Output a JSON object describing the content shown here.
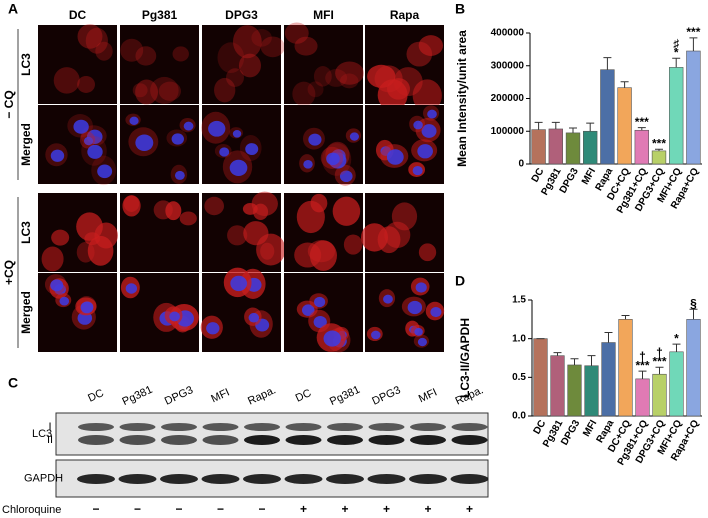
{
  "figure": {
    "panel_a": {
      "letter": "A",
      "columns": [
        "DC",
        "Pg381",
        "DPG3",
        "MFI",
        "Rapa"
      ],
      "groups": [
        {
          "label": "− CQ",
          "rows": [
            "LC3",
            "Merged"
          ]
        },
        {
          "label": "+CQ",
          "rows": [
            "LC3",
            "Merged"
          ]
        }
      ]
    },
    "panel_c": {
      "letter": "C",
      "lanes": [
        "DC",
        "Pg381",
        "DPG3",
        "MFI",
        "Rapa.",
        "DC",
        "Pg381",
        "DPG3",
        "MFI",
        "Rapa."
      ],
      "blots": [
        "LC3",
        "GAPDH"
      ],
      "bands": [
        "I",
        "II"
      ],
      "treatment": "Chloroquine",
      "treatment_signs": [
        "−",
        "−",
        "−",
        "−",
        "−",
        "+",
        "+",
        "+",
        "+",
        "+"
      ]
    }
  },
  "chart_data": [
    {
      "panel": "B",
      "type": "bar",
      "ylabel": "Mean Intensity/unit area",
      "categories": [
        "DC",
        "Pg381",
        "DPG3",
        "MFI",
        "Rapa",
        "DC+CQ",
        "Pg381+CQ",
        "DPG3+CQ",
        "MFI+CQ",
        "Rapa+CQ"
      ],
      "values": [
        105000,
        107000,
        95000,
        100000,
        288000,
        233000,
        103000,
        40000,
        295000,
        345000
      ],
      "errors": [
        22000,
        20000,
        15000,
        25000,
        37000,
        18000,
        8000,
        5000,
        28000,
        40000
      ],
      "significance": [
        null,
        null,
        null,
        null,
        null,
        null,
        [
          "***"
        ],
        [
          "***"
        ],
        [
          "♯",
          "*"
        ],
        [
          "***"
        ]
      ],
      "colors": [
        "#b5725c",
        "#b0607a",
        "#6e8a3c",
        "#2f8a78",
        "#4c6fa6",
        "#f2a65a",
        "#e07ab4",
        "#b8d068",
        "#70d8b8",
        "#8aa6e0"
      ],
      "ylim": [
        0,
        400000
      ],
      "yticks": [
        0,
        100000,
        200000,
        300000,
        400000
      ]
    },
    {
      "panel": "D",
      "type": "bar",
      "ylabel": "LC3-II/GAPDH",
      "categories": [
        "DC",
        "Pg381",
        "DPG3",
        "MFI",
        "Rapa",
        "DC+CQ",
        "Pg381+CQ",
        "DPG3+CQ",
        "MFI+CQ",
        "Rapa+CQ"
      ],
      "values": [
        1.0,
        0.78,
        0.66,
        0.65,
        0.95,
        1.25,
        0.48,
        0.54,
        0.83,
        1.25
      ],
      "errors": [
        0,
        0.04,
        0.08,
        0.13,
        0.13,
        0.05,
        0.1,
        0.09,
        0.1,
        0.13
      ],
      "significance": [
        null,
        null,
        null,
        null,
        null,
        null,
        [
          "†",
          "***"
        ],
        [
          "†",
          "***"
        ],
        [
          "*"
        ],
        [
          "§"
        ]
      ],
      "colors": [
        "#b5725c",
        "#b0607a",
        "#6e8a3c",
        "#2f8a78",
        "#4c6fa6",
        "#f2a65a",
        "#e07ab4",
        "#b8d068",
        "#70d8b8",
        "#8aa6e0"
      ],
      "ylim": [
        0,
        1.5
      ],
      "yticks": [
        {
          "value": 0,
          "label": "0.0"
        },
        0.5,
        {
          "value": 1.0,
          "label": "1.0"
        },
        1.5
      ]
    }
  ]
}
